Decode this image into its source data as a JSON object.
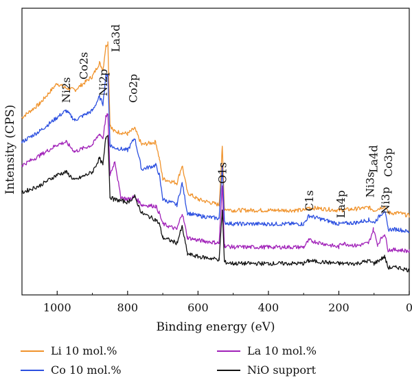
{
  "chart_data": {
    "type": "line",
    "title": "",
    "xlabel": "Binding energy (eV)",
    "ylabel": "Intensity (CPS)",
    "xlim": [
      1100,
      0
    ],
    "x_reversed": true,
    "y_ticks_shown": false,
    "xticks": [
      1000,
      800,
      600,
      400,
      200,
      0
    ],
    "grid": false,
    "legend_position": "bottom",
    "annotations": [
      {
        "text": "Ni2s",
        "x": 975,
        "rotated": false
      },
      {
        "text": "Co2s",
        "x": 925,
        "rotated": false
      },
      {
        "text": "Ni2p",
        "x": 870,
        "rotated": false
      },
      {
        "text": "La3d",
        "x": 835,
        "rotated": false
      },
      {
        "text": "Co2p",
        "x": 785,
        "rotated": true
      },
      {
        "text": "O1s",
        "x": 531,
        "rotated": true
      },
      {
        "text": "C1s",
        "x": 285,
        "rotated": true
      },
      {
        "text": "La4p",
        "x": 195,
        "rotated": true
      },
      {
        "text": "Ni3s",
        "x": 112,
        "rotated": true
      },
      {
        "text": "La4d",
        "x": 102,
        "rotated": true
      },
      {
        "text": "Ni3p",
        "x": 68,
        "rotated": true
      },
      {
        "text": "Co3p",
        "x": 60,
        "rotated": true
      }
    ],
    "series": [
      {
        "name": "Li 10 mol.%",
        "color": "#f0922a",
        "x": [
          1100,
          1050,
          1000,
          980,
          950,
          900,
          880,
          870,
          862,
          856,
          850,
          840,
          800,
          780,
          760,
          720,
          710,
          700,
          660,
          645,
          630,
          600,
          540,
          531,
          525,
          500,
          400,
          300,
          285,
          200,
          150,
          115,
          100,
          70,
          60,
          30,
          0
        ],
        "y": [
          1.3,
          1.4,
          1.55,
          1.52,
          1.5,
          1.6,
          1.7,
          1.65,
          1.82,
          1.85,
          1.25,
          1.2,
          1.18,
          1.22,
          1.1,
          1.12,
          1.0,
          0.85,
          0.82,
          0.95,
          0.75,
          0.7,
          0.66,
          1.08,
          0.63,
          0.62,
          0.62,
          0.62,
          0.64,
          0.62,
          0.63,
          0.64,
          0.62,
          0.65,
          0.6,
          0.6,
          0.58
        ]
      },
      {
        "name": "Co 10 mol.%",
        "color": "#2b4fe0",
        "x": [
          1100,
          1050,
          1000,
          975,
          950,
          900,
          880,
          870,
          862,
          856,
          850,
          840,
          800,
          780,
          760,
          720,
          710,
          700,
          660,
          645,
          630,
          600,
          540,
          531,
          525,
          500,
          400,
          300,
          285,
          200,
          150,
          115,
          100,
          70,
          60,
          30,
          0
        ],
        "y": [
          1.12,
          1.2,
          1.3,
          1.35,
          1.28,
          1.35,
          1.45,
          1.4,
          1.6,
          1.62,
          1.1,
          1.08,
          1.06,
          1.15,
          0.92,
          0.95,
          0.88,
          0.7,
          0.66,
          0.82,
          0.6,
          0.58,
          0.56,
          0.95,
          0.53,
          0.52,
          0.52,
          0.52,
          0.58,
          0.52,
          0.53,
          0.55,
          0.53,
          0.62,
          0.48,
          0.48,
          0.46
        ]
      },
      {
        "name": "La 10 mol.%",
        "color": "#a020b8",
        "x": [
          1100,
          1050,
          1000,
          975,
          950,
          900,
          880,
          870,
          862,
          856,
          850,
          836,
          820,
          800,
          780,
          760,
          720,
          710,
          700,
          660,
          645,
          630,
          600,
          540,
          531,
          525,
          500,
          400,
          300,
          285,
          200,
          195,
          150,
          115,
          102,
          90,
          70,
          60,
          30,
          0
        ],
        "y": [
          0.95,
          1.02,
          1.1,
          1.12,
          1.05,
          1.1,
          1.18,
          1.15,
          1.3,
          1.32,
          0.88,
          0.98,
          0.72,
          0.7,
          0.72,
          0.66,
          0.65,
          0.6,
          0.52,
          0.48,
          0.6,
          0.42,
          0.4,
          0.38,
          0.8,
          0.36,
          0.35,
          0.35,
          0.35,
          0.4,
          0.35,
          0.38,
          0.36,
          0.38,
          0.48,
          0.37,
          0.45,
          0.33,
          0.33,
          0.32
        ]
      },
      {
        "name": "NiO support",
        "color": "#111111",
        "x": [
          1100,
          1050,
          1000,
          975,
          950,
          900,
          880,
          870,
          862,
          856,
          850,
          840,
          800,
          780,
          760,
          720,
          710,
          700,
          660,
          645,
          630,
          600,
          540,
          531,
          525,
          500,
          400,
          300,
          285,
          200,
          150,
          115,
          100,
          70,
          60,
          30,
          0
        ],
        "y": [
          0.75,
          0.8,
          0.88,
          0.9,
          0.84,
          0.9,
          1.0,
          0.95,
          1.15,
          1.18,
          0.72,
          0.7,
          0.68,
          0.72,
          0.6,
          0.55,
          0.52,
          0.42,
          0.38,
          0.5,
          0.3,
          0.28,
          0.26,
          0.62,
          0.24,
          0.23,
          0.23,
          0.23,
          0.25,
          0.23,
          0.23,
          0.25,
          0.23,
          0.28,
          0.2,
          0.2,
          0.18
        ]
      }
    ]
  }
}
